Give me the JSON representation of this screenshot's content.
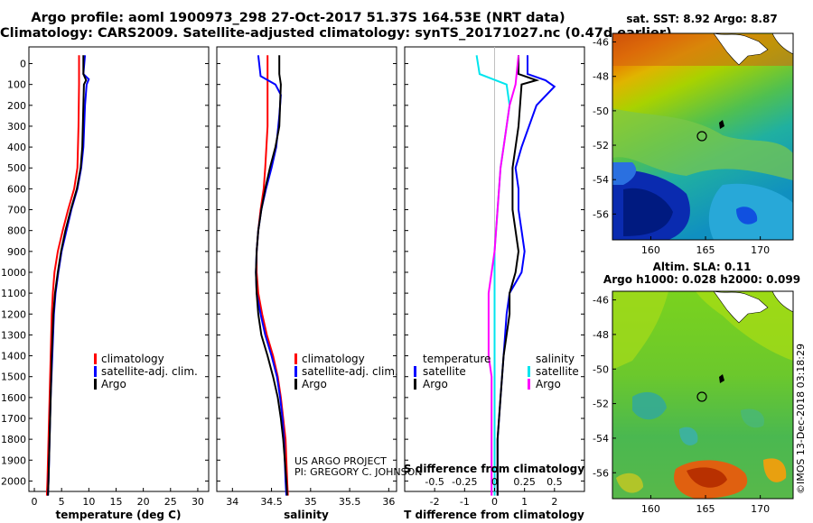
{
  "header": {
    "line1": "Argo profile: aoml 1900973_298 27-Oct-2017 51.37S 164.53E (NRT data)",
    "line2": "Climatology: CARS2009. Satellite-adjusted climatology: synTS_20171027.nc (0.47d earlier)"
  },
  "colors": {
    "climatology": "#ff0000",
    "satellite": "#0000ff",
    "argo": "#000000",
    "satellite_salinity": "#00e5ee",
    "climatology_salinity_diff": "#ff00ff"
  },
  "chart_data": [
    {
      "type": "line",
      "panel": "temperature",
      "xlabel": "temperature (deg C)",
      "ylabel": "",
      "xlim": [
        -1,
        32
      ],
      "ylim": [
        2050,
        0
      ],
      "xticks": [
        0,
        5,
        10,
        15,
        20,
        25,
        30
      ],
      "yticks": [
        0,
        100,
        200,
        300,
        400,
        500,
        600,
        700,
        800,
        900,
        1000,
        1100,
        1200,
        1300,
        1400,
        1500,
        1600,
        1700,
        1800,
        1900,
        2000
      ],
      "y_inverted": true,
      "legend": {
        "position": "bottom-center",
        "entries": [
          "climatology",
          "satellite-adj. clim.",
          "Argo"
        ]
      },
      "series": [
        {
          "name": "climatology",
          "color": "#ff0000",
          "points": [
            [
              8.2,
              -40
            ],
            [
              8.2,
              100
            ],
            [
              8.1,
              300
            ],
            [
              7.9,
              500
            ],
            [
              7.3,
              600
            ],
            [
              6.2,
              700
            ],
            [
              5.2,
              800
            ],
            [
              4.3,
              900
            ],
            [
              3.7,
              1000
            ],
            [
              3.4,
              1100
            ],
            [
              3.2,
              1200
            ],
            [
              3.0,
              1400
            ],
            [
              2.8,
              1600
            ],
            [
              2.6,
              1800
            ],
            [
              2.4,
              2000
            ],
            [
              2.3,
              2070
            ]
          ]
        },
        {
          "name": "satellite-adj. clim.",
          "color": "#0000ff",
          "points": [
            [
              9.3,
              -40
            ],
            [
              9.0,
              50
            ],
            [
              10.0,
              75
            ],
            [
              9.6,
              100
            ],
            [
              9.3,
              200
            ],
            [
              9.0,
              400
            ],
            [
              8.6,
              500
            ],
            [
              7.9,
              600
            ],
            [
              6.8,
              700
            ],
            [
              5.9,
              800
            ],
            [
              5.0,
              900
            ],
            [
              4.4,
              1000
            ],
            [
              3.9,
              1100
            ],
            [
              3.6,
              1200
            ],
            [
              3.3,
              1400
            ],
            [
              3.0,
              1600
            ],
            [
              2.8,
              1800
            ],
            [
              2.6,
              2000
            ],
            [
              2.5,
              2070
            ]
          ]
        },
        {
          "name": "Argo",
          "color": "#000000",
          "points": [
            [
              9.0,
              -40
            ],
            [
              9.0,
              50
            ],
            [
              9.5,
              80
            ],
            [
              9.1,
              100
            ],
            [
              9.0,
              200
            ],
            [
              8.8,
              400
            ],
            [
              8.5,
              500
            ],
            [
              7.8,
              600
            ],
            [
              6.7,
              700
            ],
            [
              5.7,
              800
            ],
            [
              4.9,
              900
            ],
            [
              4.3,
              1000
            ],
            [
              3.8,
              1100
            ],
            [
              3.5,
              1200
            ],
            [
              3.2,
              1400
            ],
            [
              3.0,
              1600
            ],
            [
              2.8,
              1800
            ],
            [
              2.6,
              2000
            ],
            [
              2.5,
              2070
            ]
          ]
        }
      ]
    },
    {
      "type": "line",
      "panel": "salinity",
      "xlabel": "salinity",
      "ylabel": "",
      "xlim": [
        33.8,
        36.1
      ],
      "ylim": [
        2050,
        0
      ],
      "xticks": [
        34,
        34.5,
        35,
        35.5,
        36
      ],
      "y_inverted": true,
      "legend": {
        "position": "bottom-center",
        "entries": [
          "climatology",
          "satellite-adj. clim.",
          "Argo"
        ]
      },
      "annotation": [
        "US ARGO PROJECT",
        "PI: GREGORY C. JOHNSON"
      ],
      "series": [
        {
          "name": "climatology",
          "color": "#ff0000",
          "points": [
            [
              34.45,
              -40
            ],
            [
              34.45,
              100
            ],
            [
              34.45,
              300
            ],
            [
              34.42,
              500
            ],
            [
              34.4,
              600
            ],
            [
              34.36,
              700
            ],
            [
              34.33,
              800
            ],
            [
              34.31,
              900
            ],
            [
              34.31,
              1000
            ],
            [
              34.33,
              1100
            ],
            [
              34.38,
              1200
            ],
            [
              34.44,
              1300
            ],
            [
              34.52,
              1400
            ],
            [
              34.58,
              1500
            ],
            [
              34.62,
              1600
            ],
            [
              34.65,
              1700
            ],
            [
              34.68,
              1800
            ],
            [
              34.7,
              2000
            ],
            [
              34.71,
              2070
            ]
          ]
        },
        {
          "name": "satellite-adj. clim.",
          "color": "#0000ff",
          "points": [
            [
              34.33,
              -40
            ],
            [
              34.36,
              60
            ],
            [
              34.55,
              100
            ],
            [
              34.62,
              150
            ],
            [
              34.6,
              250
            ],
            [
              34.56,
              400
            ],
            [
              34.5,
              500
            ],
            [
              34.43,
              600
            ],
            [
              34.37,
              700
            ],
            [
              34.33,
              800
            ],
            [
              34.31,
              900
            ],
            [
              34.3,
              1000
            ],
            [
              34.31,
              1100
            ],
            [
              34.36,
              1200
            ],
            [
              34.42,
              1300
            ],
            [
              34.5,
              1400
            ],
            [
              34.57,
              1500
            ],
            [
              34.61,
              1600
            ],
            [
              34.64,
              1700
            ],
            [
              34.66,
              1800
            ],
            [
              34.68,
              2000
            ],
            [
              34.69,
              2070
            ]
          ]
        },
        {
          "name": "Argo",
          "color": "#000000",
          "points": [
            [
              34.6,
              -40
            ],
            [
              34.6,
              50
            ],
            [
              34.62,
              100
            ],
            [
              34.6,
              300
            ],
            [
              34.55,
              400
            ],
            [
              34.48,
              500
            ],
            [
              34.42,
              600
            ],
            [
              34.37,
              700
            ],
            [
              34.33,
              800
            ],
            [
              34.31,
              900
            ],
            [
              34.3,
              1000
            ],
            [
              34.31,
              1100
            ],
            [
              34.33,
              1200
            ],
            [
              34.37,
              1300
            ],
            [
              34.45,
              1400
            ],
            [
              34.52,
              1500
            ],
            [
              34.58,
              1600
            ],
            [
              34.62,
              1700
            ],
            [
              34.65,
              1800
            ],
            [
              34.67,
              1900
            ],
            [
              34.69,
              2000
            ],
            [
              34.7,
              2070
            ]
          ]
        }
      ]
    },
    {
      "type": "line",
      "panel": "differences",
      "xlabel": "T difference from climatology",
      "xlabel_top": "S difference from climatology",
      "ylabel": "",
      "xlim": [
        -3,
        3
      ],
      "ylim": [
        2050,
        0
      ],
      "xticks": [
        -2,
        -1,
        0,
        1,
        2
      ],
      "xticks_s": [
        "-0.5",
        "-0.25",
        "0",
        "0.25",
        "0.5"
      ],
      "y_inverted": true,
      "legend": {
        "position": "lower-middle",
        "temperature_title": "temperature",
        "salinity_title": "salinity",
        "temperature_entries": [
          "satellite",
          "Argo"
        ],
        "salinity_entries": [
          "satellite",
          "Argo"
        ]
      },
      "series": [
        {
          "name": "T satellite",
          "color": "#0000ff",
          "points": [
            [
              1.1,
              -40
            ],
            [
              1.1,
              50
            ],
            [
              1.7,
              80
            ],
            [
              2.0,
              110
            ],
            [
              1.4,
              200
            ],
            [
              0.9,
              400
            ],
            [
              0.7,
              500
            ],
            [
              0.8,
              600
            ],
            [
              0.8,
              700
            ],
            [
              0.9,
              800
            ],
            [
              1.0,
              900
            ],
            [
              0.9,
              1000
            ],
            [
              0.5,
              1100
            ],
            [
              0.4,
              1200
            ],
            [
              0.3,
              1400
            ],
            [
              0.2,
              1600
            ],
            [
              0.1,
              1800
            ],
            [
              0.1,
              2000
            ],
            [
              0.1,
              2070
            ]
          ]
        },
        {
          "name": "T Argo",
          "color": "#000000",
          "points": [
            [
              0.8,
              -40
            ],
            [
              0.8,
              50
            ],
            [
              1.4,
              80
            ],
            [
              0.9,
              100
            ],
            [
              0.8,
              300
            ],
            [
              0.7,
              400
            ],
            [
              0.6,
              500
            ],
            [
              0.6,
              600
            ],
            [
              0.6,
              700
            ],
            [
              0.7,
              800
            ],
            [
              0.8,
              900
            ],
            [
              0.7,
              1000
            ],
            [
              0.5,
              1100
            ],
            [
              0.5,
              1200
            ],
            [
              0.3,
              1400
            ],
            [
              0.2,
              1600
            ],
            [
              0.1,
              1800
            ],
            [
              0.1,
              2000
            ],
            [
              0.1,
              2070
            ]
          ]
        },
        {
          "name": "S satellite",
          "color": "#00e5ee",
          "points": [
            [
              -0.6,
              -40
            ],
            [
              -0.5,
              50
            ],
            [
              0.4,
              100
            ],
            [
              0.5,
              200
            ],
            [
              0.4,
              300
            ],
            [
              0.2,
              500
            ],
            [
              0.1,
              700
            ],
            [
              0.0,
              900
            ],
            [
              0.0,
              1100
            ],
            [
              0.0,
              1300
            ],
            [
              0.0,
              1500
            ],
            [
              0.0,
              1700
            ],
            [
              0.0,
              1900
            ],
            [
              0.0,
              2070
            ]
          ]
        },
        {
          "name": "S climatology",
          "color": "#ff00ff",
          "points": [
            [
              0.8,
              -40
            ],
            [
              0.7,
              100
            ],
            [
              0.5,
              200
            ],
            [
              0.4,
              300
            ],
            [
              0.3,
              400
            ],
            [
              0.2,
              500
            ],
            [
              0.1,
              700
            ],
            [
              0.0,
              900
            ],
            [
              -0.1,
              1000
            ],
            [
              -0.2,
              1100
            ],
            [
              -0.2,
              1200
            ],
            [
              -0.2,
              1400
            ],
            [
              -0.1,
              1500
            ],
            [
              -0.1,
              1700
            ],
            [
              -0.1,
              1900
            ],
            [
              -0.1,
              2070
            ]
          ]
        }
      ]
    },
    {
      "type": "heatmap",
      "panel": "map-sst",
      "title": "sat. SST: 8.92 Argo: 8.87",
      "xticks": [
        "160",
        "165",
        "170"
      ],
      "yticks": [
        "-46",
        "-48",
        "-50",
        "-52",
        "-54",
        "-56"
      ],
      "xlim": [
        156.5,
        173
      ],
      "ylim": [
        -57.5,
        -45.5
      ],
      "marker": {
        "lon": 164.53,
        "lat": -51.37
      }
    },
    {
      "type": "heatmap",
      "panel": "map-sla",
      "title": "Altim. SLA: 0.11",
      "subtitle": "Argo h1000: 0.028 h2000: 0.099",
      "xticks": [
        "160",
        "165",
        "170"
      ],
      "yticks": [
        "-46",
        "-48",
        "-50",
        "-52",
        "-54",
        "-56"
      ],
      "xlim": [
        156.5,
        173
      ],
      "ylim": [
        -57.5,
        -45.5
      ],
      "marker": {
        "lon": 164.53,
        "lat": -51.37
      }
    }
  ],
  "watermark": "©IMOS 13-Dec-2018 03:18:29"
}
